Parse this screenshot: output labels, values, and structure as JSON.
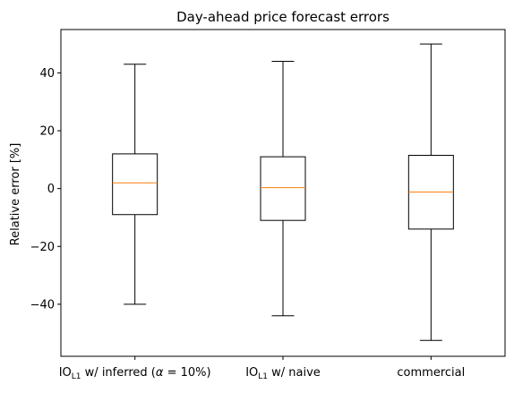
{
  "chart_data": {
    "type": "box",
    "title": "Day-ahead price forecast errors",
    "xlabel": "",
    "ylabel": "Relative error [%]",
    "ylim": [
      -58,
      55
    ],
    "yticks": [
      -40,
      -20,
      0,
      20,
      40
    ],
    "ytick_labels": [
      "−40",
      "−20",
      "0",
      "20",
      "40"
    ],
    "grid": false,
    "categories": [
      {
        "pre": "IO",
        "sub": "L1",
        "post": " w/ inferred  (",
        "alpha": "α",
        "alpha_post": " = 10%)"
      },
      {
        "pre": "IO",
        "sub": "L1",
        "post": " w/ naive",
        "alpha": "",
        "alpha_post": ""
      },
      {
        "pre": "",
        "sub": "",
        "post": "commercial",
        "alpha": "",
        "alpha_post": ""
      }
    ],
    "boxes": [
      {
        "whisker_low": -40,
        "q1": -9,
        "median": 2,
        "q3": 12,
        "whisker_high": 43
      },
      {
        "whisker_low": -44,
        "q1": -11,
        "median": 0.3,
        "q3": 11,
        "whisker_high": 44
      },
      {
        "whisker_low": -52.5,
        "q1": -14,
        "median": -1.2,
        "q3": 11.5,
        "whisker_high": 50
      }
    ],
    "colors": {
      "box": "#000000",
      "median": "#ff7f0e"
    }
  }
}
